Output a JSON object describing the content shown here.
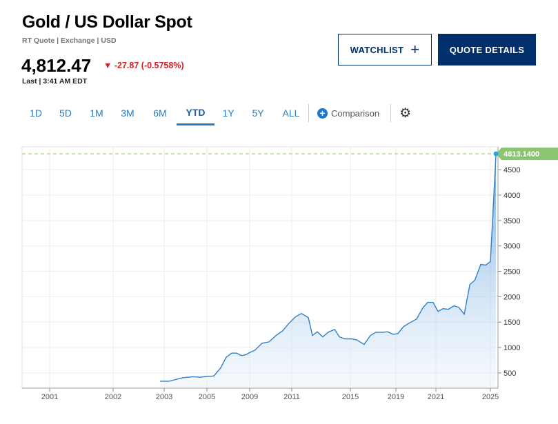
{
  "header": {
    "title": "Gold / US Dollar Spot",
    "subtitle": "RT Quote | Exchange | USD",
    "price": "4,812.47",
    "change": "-27.87 (-0.5758%)",
    "last": "Last | 3:41 AM EDT",
    "change_color": "#d21f26"
  },
  "buttons": {
    "watchlist": "WATCHLIST",
    "watchlist_icon": "plus-icon",
    "quote_details": "QUOTE DETAILS"
  },
  "tabs": [
    {
      "label": "1D"
    },
    {
      "label": "5D"
    },
    {
      "label": "1M"
    },
    {
      "label": "3M"
    },
    {
      "label": "6M"
    },
    {
      "label": "YTD",
      "active": true
    },
    {
      "label": "1Y"
    },
    {
      "label": "5Y"
    },
    {
      "label": "ALL"
    }
  ],
  "comparison": "Comparison",
  "chart_data": {
    "type": "area",
    "title": "",
    "xlabel": "",
    "ylabel": "",
    "x_ticks": [
      2001,
      2002,
      2003,
      2005,
      2009,
      2011,
      2015,
      2019,
      2021,
      2025
    ],
    "y_ticks": [
      500,
      1000,
      1500,
      2000,
      2500,
      3000,
      3500,
      4000,
      4500
    ],
    "ylim": [
      200,
      4950
    ],
    "last_value_label": "4813.1400",
    "last_value": 4813.14,
    "line_color": "#2f7fc8",
    "last_label_color": "#8dc472",
    "series": [
      {
        "name": "Gold / US Dollar Spot",
        "points": [
          [
            2002.92,
            337
          ],
          [
            2003.23,
            337
          ],
          [
            2003.87,
            405
          ],
          [
            2004.35,
            425
          ],
          [
            2004.68,
            415
          ],
          [
            2005.0,
            430
          ],
          [
            2005.65,
            440
          ],
          [
            2006.29,
            600
          ],
          [
            2006.81,
            810
          ],
          [
            2007.32,
            890
          ],
          [
            2007.77,
            890
          ],
          [
            2008.23,
            840
          ],
          [
            2008.61,
            855
          ],
          [
            2009.0,
            900
          ],
          [
            2009.26,
            950
          ],
          [
            2009.59,
            1085
          ],
          [
            2009.92,
            1110
          ],
          [
            2010.25,
            1235
          ],
          [
            2010.57,
            1330
          ],
          [
            2010.84,
            1465
          ],
          [
            2011.24,
            1600
          ],
          [
            2011.66,
            1670
          ],
          [
            2012.13,
            1590
          ],
          [
            2012.41,
            1235
          ],
          [
            2012.74,
            1310
          ],
          [
            2013.12,
            1210
          ],
          [
            2013.49,
            1300
          ],
          [
            2013.92,
            1355
          ],
          [
            2014.25,
            1210
          ],
          [
            2014.62,
            1170
          ],
          [
            2015.12,
            1170
          ],
          [
            2015.55,
            1150
          ],
          [
            2016.21,
            1060
          ],
          [
            2016.76,
            1235
          ],
          [
            2017.24,
            1300
          ],
          [
            2017.85,
            1300
          ],
          [
            2018.27,
            1310
          ],
          [
            2018.76,
            1260
          ],
          [
            2019.1,
            1275
          ],
          [
            2019.38,
            1410
          ],
          [
            2019.66,
            1480
          ],
          [
            2020.03,
            1561
          ],
          [
            2020.34,
            1779
          ],
          [
            2020.59,
            1888
          ],
          [
            2020.86,
            1888
          ],
          [
            2021.15,
            1711
          ],
          [
            2021.51,
            1765
          ],
          [
            2021.91,
            1752
          ],
          [
            2022.32,
            1820
          ],
          [
            2022.67,
            1792
          ],
          [
            2023.08,
            1656
          ],
          [
            2023.49,
            2241
          ],
          [
            2023.85,
            2323
          ],
          [
            2024.29,
            2636
          ],
          [
            2024.65,
            2622
          ],
          [
            2025.0,
            2690
          ],
          [
            2025.41,
            4813.14
          ]
        ]
      }
    ]
  }
}
